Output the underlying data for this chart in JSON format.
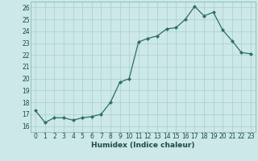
{
  "x": [
    0,
    1,
    2,
    3,
    4,
    5,
    6,
    7,
    8,
    9,
    10,
    11,
    12,
    13,
    14,
    15,
    16,
    17,
    18,
    19,
    20,
    21,
    22,
    23
  ],
  "y": [
    17.3,
    16.3,
    16.7,
    16.7,
    16.5,
    16.7,
    16.8,
    17.0,
    18.0,
    19.7,
    20.0,
    23.1,
    23.4,
    23.6,
    24.2,
    24.3,
    25.0,
    26.1,
    25.3,
    25.6,
    24.1,
    23.2,
    22.2,
    22.1
  ],
  "line_color": "#2d6e63",
  "marker": "D",
  "marker_size": 2.2,
  "bg_color": "#cce8e8",
  "grid_color": "#aacece",
  "xlabel": "Humidex (Indice chaleur)",
  "xlim": [
    -0.5,
    23.5
  ],
  "ylim": [
    15.5,
    26.5
  ],
  "yticks": [
    16,
    17,
    18,
    19,
    20,
    21,
    22,
    23,
    24,
    25,
    26
  ],
  "xticks": [
    0,
    1,
    2,
    3,
    4,
    5,
    6,
    7,
    8,
    9,
    10,
    11,
    12,
    13,
    14,
    15,
    16,
    17,
    18,
    19,
    20,
    21,
    22,
    23
  ],
  "tick_label_fontsize": 5.5,
  "xlabel_fontsize": 6.5
}
